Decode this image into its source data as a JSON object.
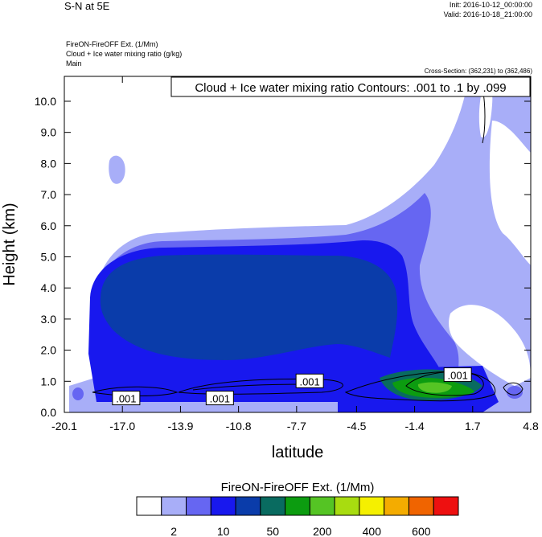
{
  "header": {
    "title": "S-N at 5E",
    "init": "Init: 2016-10-12_00:00:00",
    "valid": "Valid: 2016-10-18_21:00:00",
    "field_lines": [
      "FireON-FireOFF Ext.   (1/Mm)",
      "Cloud + Ice water mixing ratio   (g/kg)",
      "Main"
    ],
    "cross_section": "Cross-Section: (362,231) to (362,486)"
  },
  "chart_data": {
    "type": "heatmap",
    "title": "Cloud + Ice water mixing ratio Contours: .001 to .1 by .099",
    "xlabel": "latitude",
    "ylabel": "Height (km)",
    "xlim": [
      -20.1,
      4.8
    ],
    "ylim": [
      0.0,
      10.8
    ],
    "x_ticks": [
      -20.1,
      -17.0,
      -13.9,
      -10.8,
      -7.7,
      -4.5,
      -1.4,
      1.7,
      4.8
    ],
    "x_tick_labels": [
      "-20.1",
      "-17.0",
      "-13.9",
      "-10.8",
      "-7.7",
      "-4.5",
      "-1.4",
      "1.7",
      "4.8"
    ],
    "y_ticks": [
      0,
      1,
      2,
      3,
      4,
      5,
      6,
      7,
      8,
      9,
      10
    ],
    "y_tick_labels": [
      "0.0",
      "1.0",
      "2.0",
      "3.0",
      "4.0",
      "5.0",
      "6.0",
      "7.0",
      "8.0",
      "9.0",
      "10.0"
    ],
    "contour_labels": [
      {
        "text": ".001",
        "x": -16.8,
        "y": 0.45
      },
      {
        "text": ".001",
        "x": -11.8,
        "y": 0.45
      },
      {
        "text": ".001",
        "x": -7.0,
        "y": 1.0
      },
      {
        "text": ".001",
        "x": 0.9,
        "y": 1.2
      }
    ],
    "colorbar": {
      "title": "FireON-FireOFF Ext.  (1/Mm)",
      "colors": [
        "#ffffff",
        "#a8aef8",
        "#6666f2",
        "#1818ee",
        "#0a3caa",
        "#096b60",
        "#0c9c10",
        "#55c424",
        "#a8dc10",
        "#f5f000",
        "#f4ac00",
        "#f06400",
        "#ee1010"
      ],
      "tick_labels": [
        "2",
        "10",
        "50",
        "200",
        "400",
        "600"
      ]
    }
  }
}
